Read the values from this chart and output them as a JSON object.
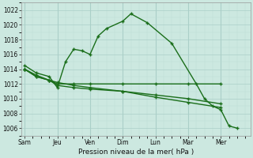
{
  "xlabel": "Pression niveau de la mer( hPa )",
  "background_color": "#cce8e0",
  "grid_color_major": "#aacfc8",
  "grid_color_minor": "#bbddd6",
  "line_color": "#1a6e1a",
  "ylim": [
    1005,
    1023
  ],
  "yticks": [
    1006,
    1008,
    1010,
    1012,
    1014,
    1016,
    1018,
    1020,
    1022
  ],
  "xtick_labels": [
    "Sam",
    "Jeu",
    "Ven",
    "Dim",
    "Lun",
    "Mar",
    "Mer"
  ],
  "xtick_positions": [
    0,
    2,
    4,
    6,
    8,
    10,
    12
  ],
  "xlim": [
    -0.2,
    13.8
  ],
  "series": [
    {
      "x": [
        0,
        0.7,
        1.5,
        2.0,
        2.5,
        3.0,
        3.5,
        4.0,
        4.5,
        5.0,
        6.0,
        6.5,
        7.5,
        9.0,
        10.5,
        11.0,
        11.5,
        12.0,
        12.5,
        13.0
      ],
      "y": [
        1014.5,
        1013.5,
        1013.0,
        1011.5,
        1015.0,
        1016.7,
        1016.5,
        1016.0,
        1018.5,
        1019.5,
        1020.5,
        1021.5,
        1020.3,
        1017.5,
        1012.0,
        1010.0,
        1009.0,
        1008.5,
        1006.3,
        1006.0
      ]
    },
    {
      "x": [
        0,
        0.7,
        1.5,
        2.0,
        3.0,
        4.0,
        6.0,
        8.0,
        10.0,
        12.0
      ],
      "y": [
        1014.0,
        1013.0,
        1012.5,
        1012.0,
        1012.0,
        1012.0,
        1012.0,
        1012.0,
        1012.0,
        1012.0
      ]
    },
    {
      "x": [
        0,
        0.7,
        1.5,
        2.0,
        3.0,
        4.0,
        6.0,
        8.0,
        10.0,
        12.0
      ],
      "y": [
        1014.0,
        1013.0,
        1012.5,
        1012.2,
        1011.8,
        1011.5,
        1011.0,
        1010.5,
        1010.0,
        1009.3
      ]
    },
    {
      "x": [
        0,
        0.7,
        1.5,
        2.0,
        3.0,
        4.0,
        6.0,
        8.0,
        10.0,
        12.0
      ],
      "y": [
        1014.0,
        1013.2,
        1012.5,
        1011.8,
        1011.5,
        1011.3,
        1011.0,
        1010.2,
        1009.5,
        1008.8
      ]
    }
  ]
}
